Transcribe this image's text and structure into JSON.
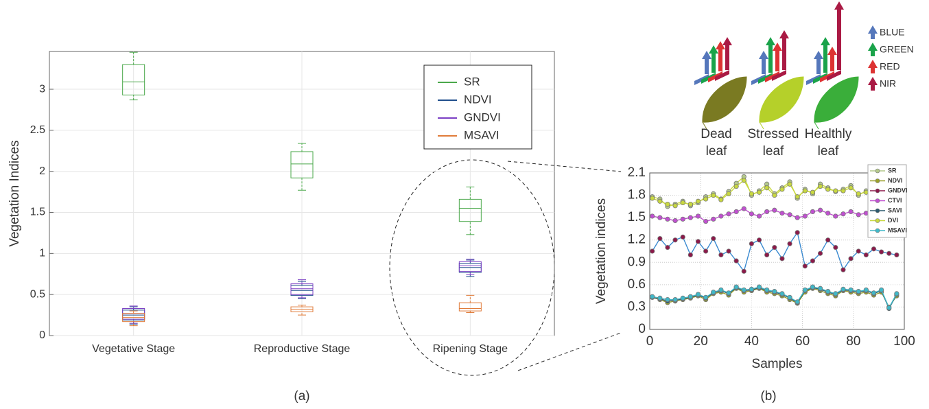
{
  "chart_data": [
    {
      "type": "box",
      "ylabel": "Vegetation Indices",
      "categories": [
        "Vegetative Stage",
        "Reproductive Stage",
        "Ripening Stage"
      ],
      "ylim": [
        0,
        3.46
      ],
      "yticks": [
        0,
        0.5,
        1,
        1.5,
        2,
        2.5,
        3
      ],
      "grid": true,
      "legend": "upper right",
      "series": [
        {
          "name": "SR",
          "color": "#4aa84a",
          "values": [
            [
              2.87,
              2.93,
              3.09,
              3.3,
              3.45
            ],
            [
              1.77,
              1.92,
              2.09,
              2.24,
              2.34
            ],
            [
              1.23,
              1.39,
              1.55,
              1.66,
              1.81
            ]
          ]
        },
        {
          "name": "NDVI",
          "color": "#1f4e8c",
          "values": [
            [
              0.14,
              0.19,
              0.25,
              0.31,
              0.35
            ],
            [
              0.45,
              0.49,
              0.55,
              0.61,
              0.66
            ],
            [
              0.72,
              0.77,
              0.83,
              0.88,
              0.92
            ]
          ]
        },
        {
          "name": "GNDVI",
          "color": "#7b3fc4",
          "values": [
            [
              0.15,
              0.2,
              0.27,
              0.33,
              0.36
            ],
            [
              0.46,
              0.5,
              0.57,
              0.63,
              0.68
            ],
            [
              0.74,
              0.78,
              0.85,
              0.9,
              0.93
            ]
          ]
        },
        {
          "name": "MSAVI",
          "color": "#e07b39",
          "values": [
            [
              0.12,
              0.17,
              0.22,
              0.27,
              0.3
            ],
            [
              0.25,
              0.29,
              0.32,
              0.35,
              0.37
            ],
            [
              0.28,
              0.3,
              0.33,
              0.4,
              0.49
            ]
          ]
        }
      ],
      "caption": "(a)"
    },
    {
      "type": "line",
      "xlabel": "Samples",
      "ylabel": "Vegetation indices",
      "x": [
        1,
        4,
        7,
        10,
        13,
        16,
        19,
        22,
        25,
        28,
        31,
        34,
        37,
        40,
        43,
        46,
        49,
        52,
        55,
        58,
        61,
        64,
        67,
        70,
        73,
        76,
        79,
        82,
        85,
        88,
        91,
        94,
        97
      ],
      "xlim": [
        0,
        100
      ],
      "xticks": [
        0,
        20,
        40,
        60,
        80,
        100
      ],
      "ylim": [
        0,
        2.1
      ],
      "yticks": [
        0,
        0.3,
        0.6,
        0.9,
        1.2,
        1.5,
        1.8,
        2.1
      ],
      "grid": true,
      "legend": "upper right",
      "series": [
        {
          "name": "SR",
          "color": "#b4c98c",
          "values": [
            1.78,
            1.75,
            1.65,
            1.68,
            1.72,
            1.66,
            1.7,
            1.78,
            1.82,
            1.75,
            1.85,
            1.96,
            2.05,
            1.8,
            1.86,
            1.95,
            1.82,
            1.9,
            1.98,
            1.76,
            1.88,
            1.82,
            1.95,
            1.9,
            1.85,
            1.88,
            1.93,
            1.8,
            1.86,
            1.9,
            1.92,
            1.84,
            1.9
          ]
        },
        {
          "name": "NDVI",
          "color": "#9aa02a",
          "values": [
            0.43,
            0.4,
            0.36,
            0.38,
            0.4,
            0.42,
            0.45,
            0.4,
            0.48,
            0.5,
            0.46,
            0.55,
            0.5,
            0.52,
            0.55,
            0.5,
            0.48,
            0.45,
            0.4,
            0.35,
            0.5,
            0.55,
            0.52,
            0.48,
            0.45,
            0.52,
            0.5,
            0.48,
            0.5,
            0.46,
            0.5,
            0.3,
            0.45
          ]
        },
        {
          "name": "GNDVI",
          "color": "#8b1a4a",
          "values": [
            1.05,
            1.22,
            1.1,
            1.2,
            1.24,
            1.0,
            1.18,
            1.05,
            1.22,
            1.0,
            1.05,
            0.92,
            0.78,
            1.15,
            1.2,
            1.0,
            1.1,
            0.95,
            1.15,
            1.3,
            0.85,
            0.92,
            1.02,
            1.2,
            1.1,
            0.8,
            0.95,
            1.05,
            1.0,
            1.08,
            1.04,
            1.02,
            1.0
          ]
        },
        {
          "name": "CTVI",
          "color": "#c050d0",
          "values": [
            1.52,
            1.5,
            1.48,
            1.46,
            1.48,
            1.5,
            1.52,
            1.45,
            1.48,
            1.52,
            1.55,
            1.58,
            1.62,
            1.55,
            1.52,
            1.58,
            1.6,
            1.56,
            1.54,
            1.5,
            1.52,
            1.58,
            1.6,
            1.56,
            1.52,
            1.55,
            1.58,
            1.54,
            1.56,
            1.58,
            1.55,
            1.57,
            1.56
          ]
        },
        {
          "name": "SAVI",
          "color": "#2d5a6e",
          "values": [
            0.43,
            0.41,
            0.38,
            0.39,
            0.41,
            0.43,
            0.46,
            0.42,
            0.49,
            0.52,
            0.48,
            0.56,
            0.52,
            0.53,
            0.56,
            0.52,
            0.5,
            0.47,
            0.42,
            0.36,
            0.52,
            0.56,
            0.54,
            0.5,
            0.47,
            0.53,
            0.52,
            0.5,
            0.52,
            0.48,
            0.52,
            0.28,
            0.47
          ]
        },
        {
          "name": "DVI",
          "color": "#c8d840",
          "values": [
            1.76,
            1.72,
            1.68,
            1.66,
            1.7,
            1.68,
            1.72,
            1.75,
            1.8,
            1.74,
            1.82,
            1.92,
            2.0,
            1.82,
            1.84,
            1.9,
            1.8,
            1.88,
            1.95,
            1.78,
            1.86,
            1.84,
            1.92,
            1.88,
            1.86,
            1.86,
            1.9,
            1.82,
            1.84,
            1.88,
            1.9,
            1.86,
            1.88
          ]
        },
        {
          "name": "MSAVI",
          "color": "#40b8c8",
          "values": [
            0.44,
            0.42,
            0.4,
            0.4,
            0.42,
            0.44,
            0.47,
            0.43,
            0.5,
            0.53,
            0.49,
            0.57,
            0.53,
            0.54,
            0.57,
            0.53,
            0.51,
            0.48,
            0.43,
            0.37,
            0.53,
            0.57,
            0.55,
            0.51,
            0.48,
            0.54,
            0.53,
            0.51,
            0.53,
            0.49,
            0.53,
            0.29,
            0.48
          ]
        }
      ],
      "caption": "(b)"
    }
  ],
  "diagram": {
    "leaves": [
      [
        "Dead",
        "leaf"
      ],
      [
        "Stressed",
        "leaf"
      ],
      [
        "Healthly",
        "leaf"
      ]
    ],
    "bands": [
      "BLUE",
      "GREEN",
      "RED",
      "NIR"
    ]
  }
}
